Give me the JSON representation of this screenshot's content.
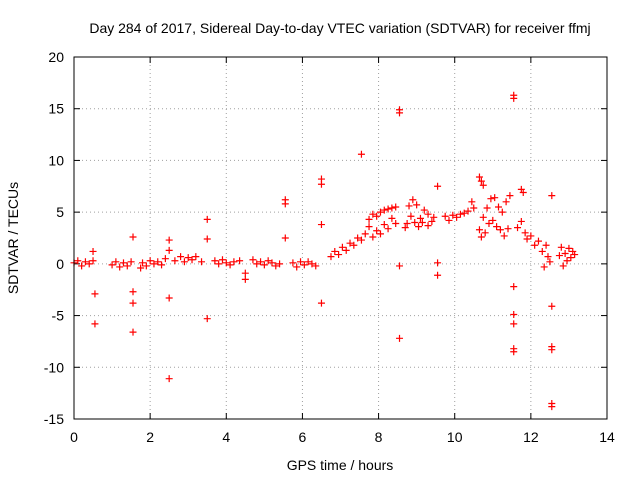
{
  "chart_data": {
    "type": "scatter",
    "title": "Day 284 of 2017, Sidereal Day-to-day VTEC variation (SDTVAR) for receiver ffmj",
    "xlabel": "GPS time / hours",
    "ylabel": "SDTVAR / TECUs",
    "xlim": [
      0,
      14
    ],
    "ylim": [
      -15,
      20
    ],
    "xticks": [
      0,
      2,
      4,
      6,
      8,
      10,
      12,
      14
    ],
    "yticks": [
      -15,
      -10,
      -5,
      0,
      5,
      10,
      15,
      20
    ],
    "xtick_labels": [
      "0",
      "2",
      "4",
      "6",
      "8",
      "10",
      "12",
      "14"
    ],
    "ytick_labels": [
      "-15",
      "-10",
      "-5",
      "0",
      "5",
      "10",
      "15",
      "20"
    ],
    "grid": true,
    "marker": "+",
    "color": "#ff0000",
    "series": [
      {
        "name": "SDTVAR",
        "points": [
          [
            0.0,
            0.1
          ],
          [
            0.1,
            0.3
          ],
          [
            0.2,
            -0.2
          ],
          [
            0.3,
            0.2
          ],
          [
            0.4,
            0.0
          ],
          [
            0.5,
            0.3
          ],
          [
            0.5,
            1.2
          ],
          [
            0.55,
            -2.9
          ],
          [
            0.55,
            -5.8
          ],
          [
            1.0,
            -0.1
          ],
          [
            1.1,
            0.2
          ],
          [
            1.2,
            -0.3
          ],
          [
            1.3,
            0.1
          ],
          [
            1.4,
            -0.2
          ],
          [
            1.5,
            0.2
          ],
          [
            1.55,
            2.6
          ],
          [
            1.55,
            -2.7
          ],
          [
            1.55,
            -3.8
          ],
          [
            1.55,
            -6.6
          ],
          [
            1.75,
            -0.4
          ],
          [
            1.8,
            0.1
          ],
          [
            1.9,
            -0.2
          ],
          [
            2.0,
            0.3
          ],
          [
            2.1,
            0.0
          ],
          [
            2.2,
            0.2
          ],
          [
            2.3,
            -0.1
          ],
          [
            2.4,
            0.5
          ],
          [
            2.5,
            2.3
          ],
          [
            2.5,
            1.3
          ],
          [
            2.5,
            -3.3
          ],
          [
            2.5,
            -11.1
          ],
          [
            2.65,
            0.3
          ],
          [
            2.8,
            0.7
          ],
          [
            2.9,
            0.2
          ],
          [
            3.0,
            0.6
          ],
          [
            3.1,
            0.4
          ],
          [
            3.2,
            0.7
          ],
          [
            3.35,
            0.2
          ],
          [
            3.5,
            4.3
          ],
          [
            3.5,
            2.4
          ],
          [
            3.5,
            -5.3
          ],
          [
            3.7,
            0.3
          ],
          [
            3.8,
            0.0
          ],
          [
            3.9,
            0.4
          ],
          [
            4.0,
            0.1
          ],
          [
            4.1,
            -0.1
          ],
          [
            4.2,
            0.2
          ],
          [
            4.35,
            0.3
          ],
          [
            4.5,
            -0.9
          ],
          [
            4.5,
            -1.5
          ],
          [
            4.7,
            0.4
          ],
          [
            4.8,
            0.0
          ],
          [
            4.9,
            0.2
          ],
          [
            5.0,
            -0.1
          ],
          [
            5.1,
            0.3
          ],
          [
            5.2,
            0.1
          ],
          [
            5.3,
            -0.2
          ],
          [
            5.4,
            0.0
          ],
          [
            5.55,
            6.2
          ],
          [
            5.55,
            5.8
          ],
          [
            5.55,
            2.5
          ],
          [
            5.75,
            0.1
          ],
          [
            5.85,
            -0.3
          ],
          [
            5.95,
            0.2
          ],
          [
            6.05,
            -0.1
          ],
          [
            6.15,
            0.2
          ],
          [
            6.25,
            0.0
          ],
          [
            6.35,
            -0.2
          ],
          [
            6.5,
            8.2
          ],
          [
            6.5,
            7.7
          ],
          [
            6.5,
            3.8
          ],
          [
            6.5,
            -3.8
          ],
          [
            6.75,
            0.7
          ],
          [
            6.85,
            1.2
          ],
          [
            6.95,
            0.9
          ],
          [
            7.05,
            1.6
          ],
          [
            7.15,
            1.3
          ],
          [
            7.25,
            2.0
          ],
          [
            7.35,
            1.8
          ],
          [
            7.45,
            2.5
          ],
          [
            7.55,
            2.3
          ],
          [
            7.55,
            10.6
          ],
          [
            7.65,
            2.9
          ],
          [
            7.75,
            3.6
          ],
          [
            7.85,
            2.6
          ],
          [
            7.95,
            3.2
          ],
          [
            8.05,
            2.9
          ],
          [
            8.15,
            3.8
          ],
          [
            8.25,
            3.4
          ],
          [
            8.35,
            4.4
          ],
          [
            8.45,
            3.9
          ],
          [
            7.75,
            4.3
          ],
          [
            7.85,
            4.8
          ],
          [
            7.95,
            4.6
          ],
          [
            8.05,
            5.0
          ],
          [
            8.15,
            5.2
          ],
          [
            8.25,
            5.3
          ],
          [
            8.35,
            5.4
          ],
          [
            8.45,
            5.5
          ],
          [
            8.55,
            14.9
          ],
          [
            8.55,
            14.6
          ],
          [
            8.55,
            -0.2
          ],
          [
            8.55,
            -7.2
          ],
          [
            8.7,
            3.5
          ],
          [
            8.8,
            5.6
          ],
          [
            8.9,
            6.2
          ],
          [
            9.0,
            5.7
          ],
          [
            9.1,
            4.4
          ],
          [
            9.2,
            5.2
          ],
          [
            9.3,
            4.8
          ],
          [
            9.4,
            4.1
          ],
          [
            9.45,
            4.5
          ],
          [
            8.75,
            3.9
          ],
          [
            8.85,
            4.6
          ],
          [
            8.95,
            4.0
          ],
          [
            9.05,
            3.6
          ],
          [
            9.15,
            4.0
          ],
          [
            9.3,
            3.7
          ],
          [
            9.55,
            7.5
          ],
          [
            9.55,
            0.1
          ],
          [
            9.55,
            -1.1
          ],
          [
            9.75,
            4.6
          ],
          [
            9.85,
            4.2
          ],
          [
            9.95,
            4.7
          ],
          [
            10.05,
            4.5
          ],
          [
            10.15,
            4.8
          ],
          [
            10.25,
            4.9
          ],
          [
            10.35,
            5.1
          ],
          [
            10.45,
            6.0
          ],
          [
            10.5,
            5.4
          ],
          [
            10.65,
            8.4
          ],
          [
            10.7,
            8.0
          ],
          [
            10.75,
            7.6
          ],
          [
            10.65,
            3.3
          ],
          [
            10.75,
            4.5
          ],
          [
            10.85,
            5.4
          ],
          [
            10.95,
            6.3
          ],
          [
            11.05,
            6.4
          ],
          [
            11.15,
            5.5
          ],
          [
            11.25,
            5.0
          ],
          [
            11.35,
            6.0
          ],
          [
            11.45,
            6.6
          ],
          [
            10.7,
            2.6
          ],
          [
            10.8,
            3.0
          ],
          [
            10.9,
            3.9
          ],
          [
            11.0,
            4.2
          ],
          [
            11.1,
            3.6
          ],
          [
            11.2,
            3.3
          ],
          [
            11.3,
            2.7
          ],
          [
            11.4,
            3.4
          ],
          [
            11.55,
            16.3
          ],
          [
            11.55,
            16.0
          ],
          [
            11.55,
            -2.2
          ],
          [
            11.55,
            -4.9
          ],
          [
            11.55,
            -5.8
          ],
          [
            11.55,
            -8.2
          ],
          [
            11.55,
            -8.5
          ],
          [
            11.65,
            3.5
          ],
          [
            11.75,
            4.1
          ],
          [
            11.75,
            7.2
          ],
          [
            11.8,
            6.9
          ],
          [
            11.85,
            3.0
          ],
          [
            11.9,
            2.4
          ],
          [
            12.0,
            2.7
          ],
          [
            12.1,
            1.8
          ],
          [
            12.2,
            2.2
          ],
          [
            12.3,
            1.2
          ],
          [
            12.4,
            1.8
          ],
          [
            12.45,
            0.7
          ],
          [
            12.5,
            0.2
          ],
          [
            12.35,
            -0.3
          ],
          [
            12.55,
            6.6
          ],
          [
            12.55,
            -4.1
          ],
          [
            12.55,
            -8.0
          ],
          [
            12.55,
            -8.3
          ],
          [
            12.55,
            -13.5
          ],
          [
            12.55,
            -13.8
          ],
          [
            12.75,
            0.8
          ],
          [
            12.8,
            1.6
          ],
          [
            12.85,
            -0.2
          ],
          [
            12.9,
            1.0
          ],
          [
            12.95,
            0.3
          ],
          [
            13.0,
            1.5
          ],
          [
            13.05,
            0.6
          ],
          [
            13.1,
            1.2
          ],
          [
            13.15,
            0.9
          ]
        ]
      }
    ]
  }
}
